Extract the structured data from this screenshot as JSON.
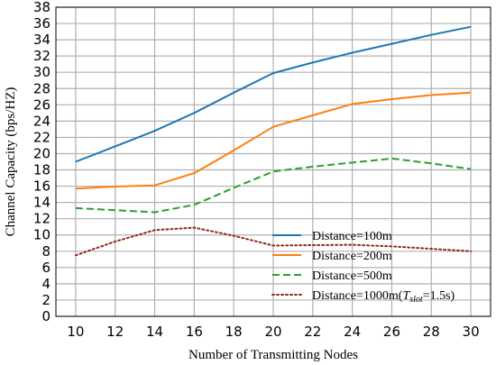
{
  "chart_data": {
    "type": "line",
    "xlabel": "Number of Transmitting Nodes",
    "ylabel": "Channel Capacity (bps/HZ)",
    "xlim": [
      9,
      31
    ],
    "ylim": [
      0,
      38
    ],
    "xticks": [
      10,
      12,
      14,
      16,
      18,
      20,
      22,
      24,
      26,
      28,
      30
    ],
    "yticks": [
      0,
      2,
      4,
      6,
      8,
      10,
      12,
      14,
      16,
      18,
      20,
      22,
      24,
      26,
      28,
      30,
      32,
      34,
      36,
      38
    ],
    "grid": true,
    "legend_position": "lower-right",
    "x": [
      10,
      12,
      14,
      16,
      18,
      20,
      22,
      24,
      26,
      28,
      30
    ],
    "series": [
      {
        "name": "Distance=100m",
        "color": "#1f77b4",
        "dash": "solid",
        "values": [
          19.0,
          20.9,
          22.8,
          25.0,
          27.5,
          29.9,
          31.2,
          32.4,
          33.5,
          34.6,
          35.6
        ]
      },
      {
        "name": "Distance=200m",
        "color": "#ff7f0e",
        "dash": "solid",
        "values": [
          15.7,
          15.95,
          16.1,
          17.6,
          20.4,
          23.3,
          24.7,
          26.1,
          26.7,
          27.2,
          27.5
        ]
      },
      {
        "name": "Distance=500m",
        "color": "#2ca02c",
        "dash": "dashed",
        "values": [
          13.3,
          13.05,
          12.8,
          13.7,
          15.8,
          17.8,
          18.4,
          18.9,
          19.4,
          18.8,
          18.1
        ]
      },
      {
        "name_prefix": "Distance=1000m(",
        "name_var": "T",
        "name_sub": "slot",
        "name_suffix": "=1.5s)",
        "color": "#8c2d19",
        "dash": "dotted",
        "values": [
          7.5,
          9.2,
          10.6,
          10.9,
          9.9,
          8.7,
          8.75,
          8.8,
          8.6,
          8.3,
          8.0
        ]
      }
    ]
  }
}
